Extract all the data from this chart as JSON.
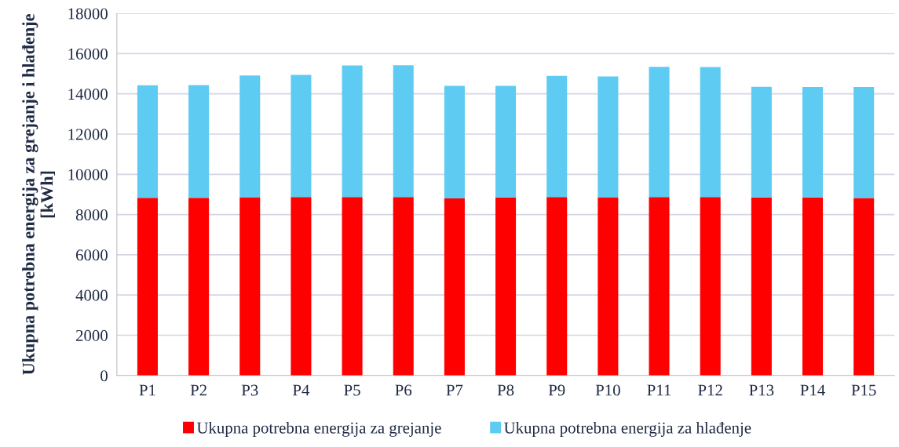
{
  "chart_data": {
    "type": "bar",
    "stacked": true,
    "ylabel": "Ukupna potrebna energija za grejanje i hlađenje [kWh]",
    "categories": [
      "P1",
      "P2",
      "P3",
      "P4",
      "P5",
      "P6",
      "P7",
      "P8",
      "P9",
      "P10",
      "P11",
      "P12",
      "P13",
      "P14",
      "P15"
    ],
    "series": [
      {
        "name": "Ukupna potrebna energija za grejanje",
        "color": "#ff0000",
        "values": [
          8835,
          8835,
          8860,
          8875,
          8875,
          8875,
          8800,
          8850,
          8875,
          8860,
          8875,
          8875,
          8850,
          8850,
          8820
        ]
      },
      {
        "name": "Ukupna potrebna energija za hlađenje",
        "color": "#5ecbf2",
        "values": [
          5595,
          5605,
          6050,
          6065,
          6535,
          6545,
          5600,
          5550,
          6015,
          6010,
          6465,
          6455,
          5500,
          5490,
          5520
        ]
      }
    ],
    "ylim": [
      0,
      18000
    ],
    "yticks": [
      0,
      2000,
      4000,
      6000,
      8000,
      10000,
      12000,
      14000,
      16000,
      18000
    ],
    "grid": "y",
    "legend": "bottom"
  }
}
